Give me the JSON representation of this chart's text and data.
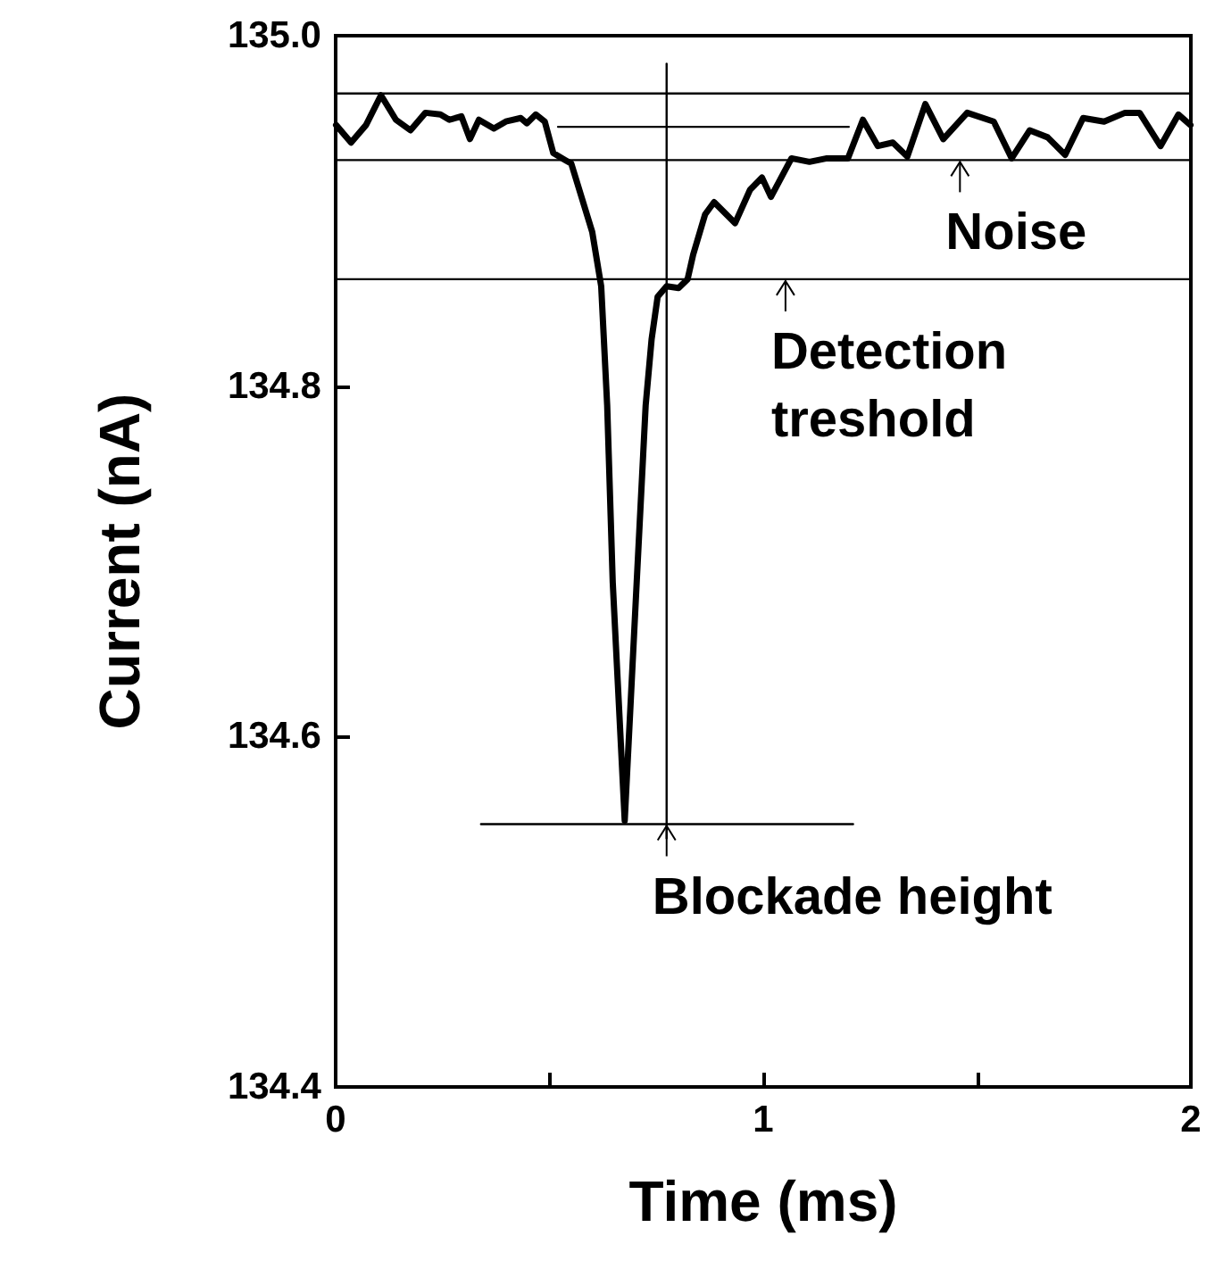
{
  "chart_data": {
    "type": "line",
    "xlabel": "Time (ms)",
    "ylabel": "Current (nA)",
    "xlim": [
      0,
      2
    ],
    "xticks": [
      0,
      {
        "value": 0.5,
        "label": null
      },
      1,
      {
        "value": 1.5,
        "label": null
      },
      2
    ],
    "ylim": [
      134.4,
      135.0
    ],
    "yticks": [
      134.4,
      134.6,
      134.8,
      {
        "value": 135.0,
        "label": "135.0"
      }
    ],
    "grid": false,
    "marker": "none",
    "line_style": "solid",
    "series": [
      {
        "color": "#000000",
        "x": [
          0.001,
          0.036,
          0.071,
          0.106,
          0.141,
          0.175,
          0.21,
          0.245,
          0.266,
          0.294,
          0.314,
          0.335,
          0.37,
          0.398,
          0.433,
          0.447,
          0.468,
          0.489,
          0.509,
          0.537,
          0.551,
          0.6,
          0.621,
          0.635,
          0.648,
          0.676,
          0.704,
          0.725,
          0.739,
          0.753,
          0.774,
          0.802,
          0.823,
          0.836,
          0.864,
          0.885,
          0.934,
          0.969,
          0.997,
          1.018,
          1.066,
          1.108,
          1.149,
          1.198,
          1.233,
          1.268,
          1.303,
          1.337,
          1.379,
          1.421,
          1.477,
          1.539,
          1.581,
          1.623,
          1.665,
          1.706,
          1.748,
          1.797,
          1.846,
          1.88,
          1.929,
          1.971,
          1.999
        ],
        "values": [
          134.949,
          134.939,
          134.949,
          134.966,
          134.952,
          134.946,
          134.956,
          134.955,
          134.952,
          134.954,
          134.941,
          134.952,
          134.947,
          134.951,
          134.953,
          134.95,
          134.955,
          134.951,
          134.933,
          134.929,
          134.927,
          134.888,
          134.857,
          134.789,
          134.688,
          134.552,
          134.688,
          134.789,
          134.827,
          134.851,
          134.857,
          134.856,
          134.861,
          134.875,
          134.898,
          134.905,
          134.893,
          134.912,
          134.919,
          134.908,
          134.93,
          134.928,
          134.93,
          134.93,
          134.952,
          134.937,
          134.939,
          134.931,
          134.961,
          134.941,
          134.956,
          134.951,
          134.93,
          134.946,
          134.942,
          134.932,
          134.953,
          134.951,
          134.956,
          134.956,
          134.937,
          134.955,
          134.949
        ]
      },
      {
        "color": "#000000",
        "x": [
          0.52,
          1.2
        ],
        "values": [
          134.948,
          134.948
        ]
      },
      {
        "color": "#000000",
        "x": [
          0.34,
          1.21
        ],
        "values": [
          134.55,
          134.55
        ]
      },
      {
        "color": "#000000",
        "x": [
          0.774,
          0.774
        ],
        "values": [
          134.984,
          134.542
        ]
      }
    ],
    "ref_lines": [
      {
        "axis": "y",
        "value": 134.967,
        "color": "#000000"
      },
      {
        "axis": "y",
        "value": 134.929,
        "color": "#000000"
      },
      {
        "axis": "y",
        "value": 134.861,
        "color": "#000000"
      }
    ],
    "annotations": [
      {
        "text": "Noise",
        "x": 1.46,
        "y": 134.929
      },
      {
        "text": "Detection\ntreshold",
        "x": 1.052,
        "y": 134.861
      },
      {
        "text": "Blockade height",
        "x": 0.774,
        "y": 134.55
      }
    ]
  }
}
